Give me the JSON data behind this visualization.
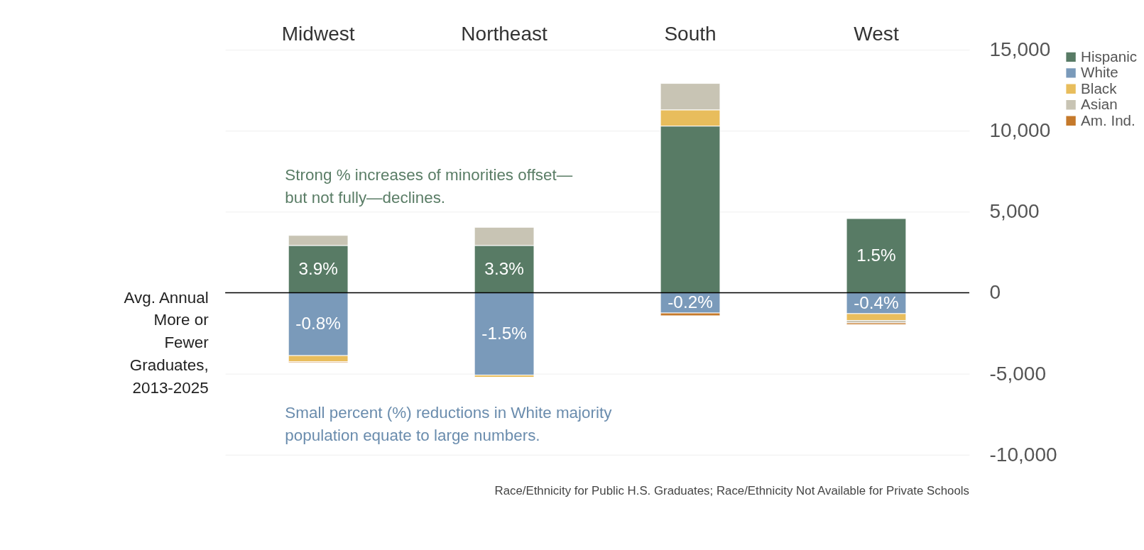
{
  "chart_data": {
    "type": "bar",
    "stacked": true,
    "categories": [
      "Midwest",
      "Northeast",
      "South",
      "West"
    ],
    "ylabel": "Avg. Annual\nMore or\nFewer\nGraduates,\n2013-2025",
    "series": [
      {
        "name": "Hispanic",
        "color": "#587b65",
        "values": [
          2920,
          2920,
          10290,
          4580
        ]
      },
      {
        "name": "White",
        "color": "#7a9aba",
        "values": [
          -3880,
          -5080,
          -1250,
          -1290
        ]
      },
      {
        "name": "Black",
        "color": "#e8bd5c",
        "values": [
          -370,
          -130,
          1000,
          -420
        ]
      },
      {
        "name": "Asian",
        "color": "#c8c4b4",
        "values": [
          620,
          1120,
          1630,
          -150
        ]
      },
      {
        "name": "Am. Ind.",
        "color": "#c5792b",
        "values": [
          -60,
          null,
          -170,
          -100
        ]
      }
    ],
    "ylim": [
      -10000,
      15000
    ],
    "yticks": [
      {
        "value": -10000,
        "label": "-10,000"
      },
      {
        "value": -5000,
        "label": "-5,000"
      },
      0,
      {
        "value": 5000,
        "label": "5,000"
      },
      {
        "value": 10000,
        "label": "10,000"
      },
      {
        "value": 15000,
        "label": "15,000"
      }
    ],
    "grid": "y",
    "legend": "right",
    "ref_lines": [
      {
        "axis": "y",
        "value": 0,
        "color": "#000000"
      }
    ],
    "annotations": [
      {
        "text": "3.9%",
        "x": "Midwest",
        "y": 2920
      },
      {
        "text": "3.3%",
        "x": "Northeast",
        "y": 2920
      },
      {
        "text": "1.5%",
        "x": "West",
        "y": 4580
      },
      {
        "text": "-0.8%",
        "x": "Midwest",
        "y": -3880
      },
      {
        "text": "-1.5%",
        "x": "Northeast",
        "y": -5080
      },
      {
        "text": "-0.2%",
        "x": "South",
        "y": -1250
      },
      {
        "text": "-0.4%",
        "x": "West",
        "y": -1290
      },
      "Strong % increases of minorities offset—\nbut not fully—declines.",
      "Small percent (%) reductions in White majority\npopulation equate to large numbers.",
      "Race/Ethnicity for Public H.S. Graduates; Race/Ethnicity Not Available for Private Schools"
    ]
  }
}
